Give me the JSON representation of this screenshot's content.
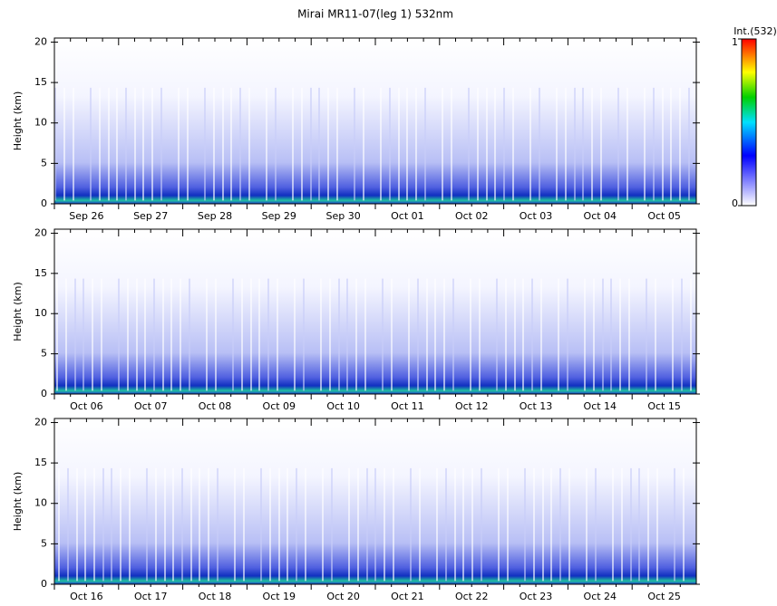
{
  "chart_data": [
    {
      "type": "heatmap",
      "title": "Mirai MR11-07(leg 1) 532nm",
      "ylabel": "Height (km)",
      "categories": [
        "Sep 26",
        "Sep 27",
        "Sep 28",
        "Sep 29",
        "Sep 30",
        "Oct 01",
        "Oct 02",
        "Oct 03",
        "Oct 04",
        "Oct 05"
      ],
      "ylim": [
        0,
        20.5
      ],
      "yticks": [
        0,
        5,
        10,
        15,
        20
      ],
      "colorbar_label": "Int.(532)",
      "clim": [
        0,
        1
      ],
      "cticks": [
        0,
        1
      ]
    },
    {
      "type": "heatmap",
      "ylabel": "Height (km)",
      "categories": [
        "Oct 06",
        "Oct 07",
        "Oct 08",
        "Oct 09",
        "Oct 10",
        "Oct 11",
        "Oct 12",
        "Oct 13",
        "Oct 14",
        "Oct 15"
      ],
      "ylim": [
        0,
        20.5
      ],
      "yticks": [
        0,
        5,
        10,
        15,
        20
      ]
    },
    {
      "type": "heatmap",
      "ylabel": "Height (km)",
      "categories": [
        "Oct 16",
        "Oct 17",
        "Oct 18",
        "Oct 19",
        "Oct 20",
        "Oct 21",
        "Oct 22",
        "Oct 23",
        "Oct 24",
        "Oct 25"
      ],
      "ylim": [
        0,
        20.5
      ],
      "yticks": [
        0,
        5,
        10,
        15,
        20
      ]
    }
  ]
}
